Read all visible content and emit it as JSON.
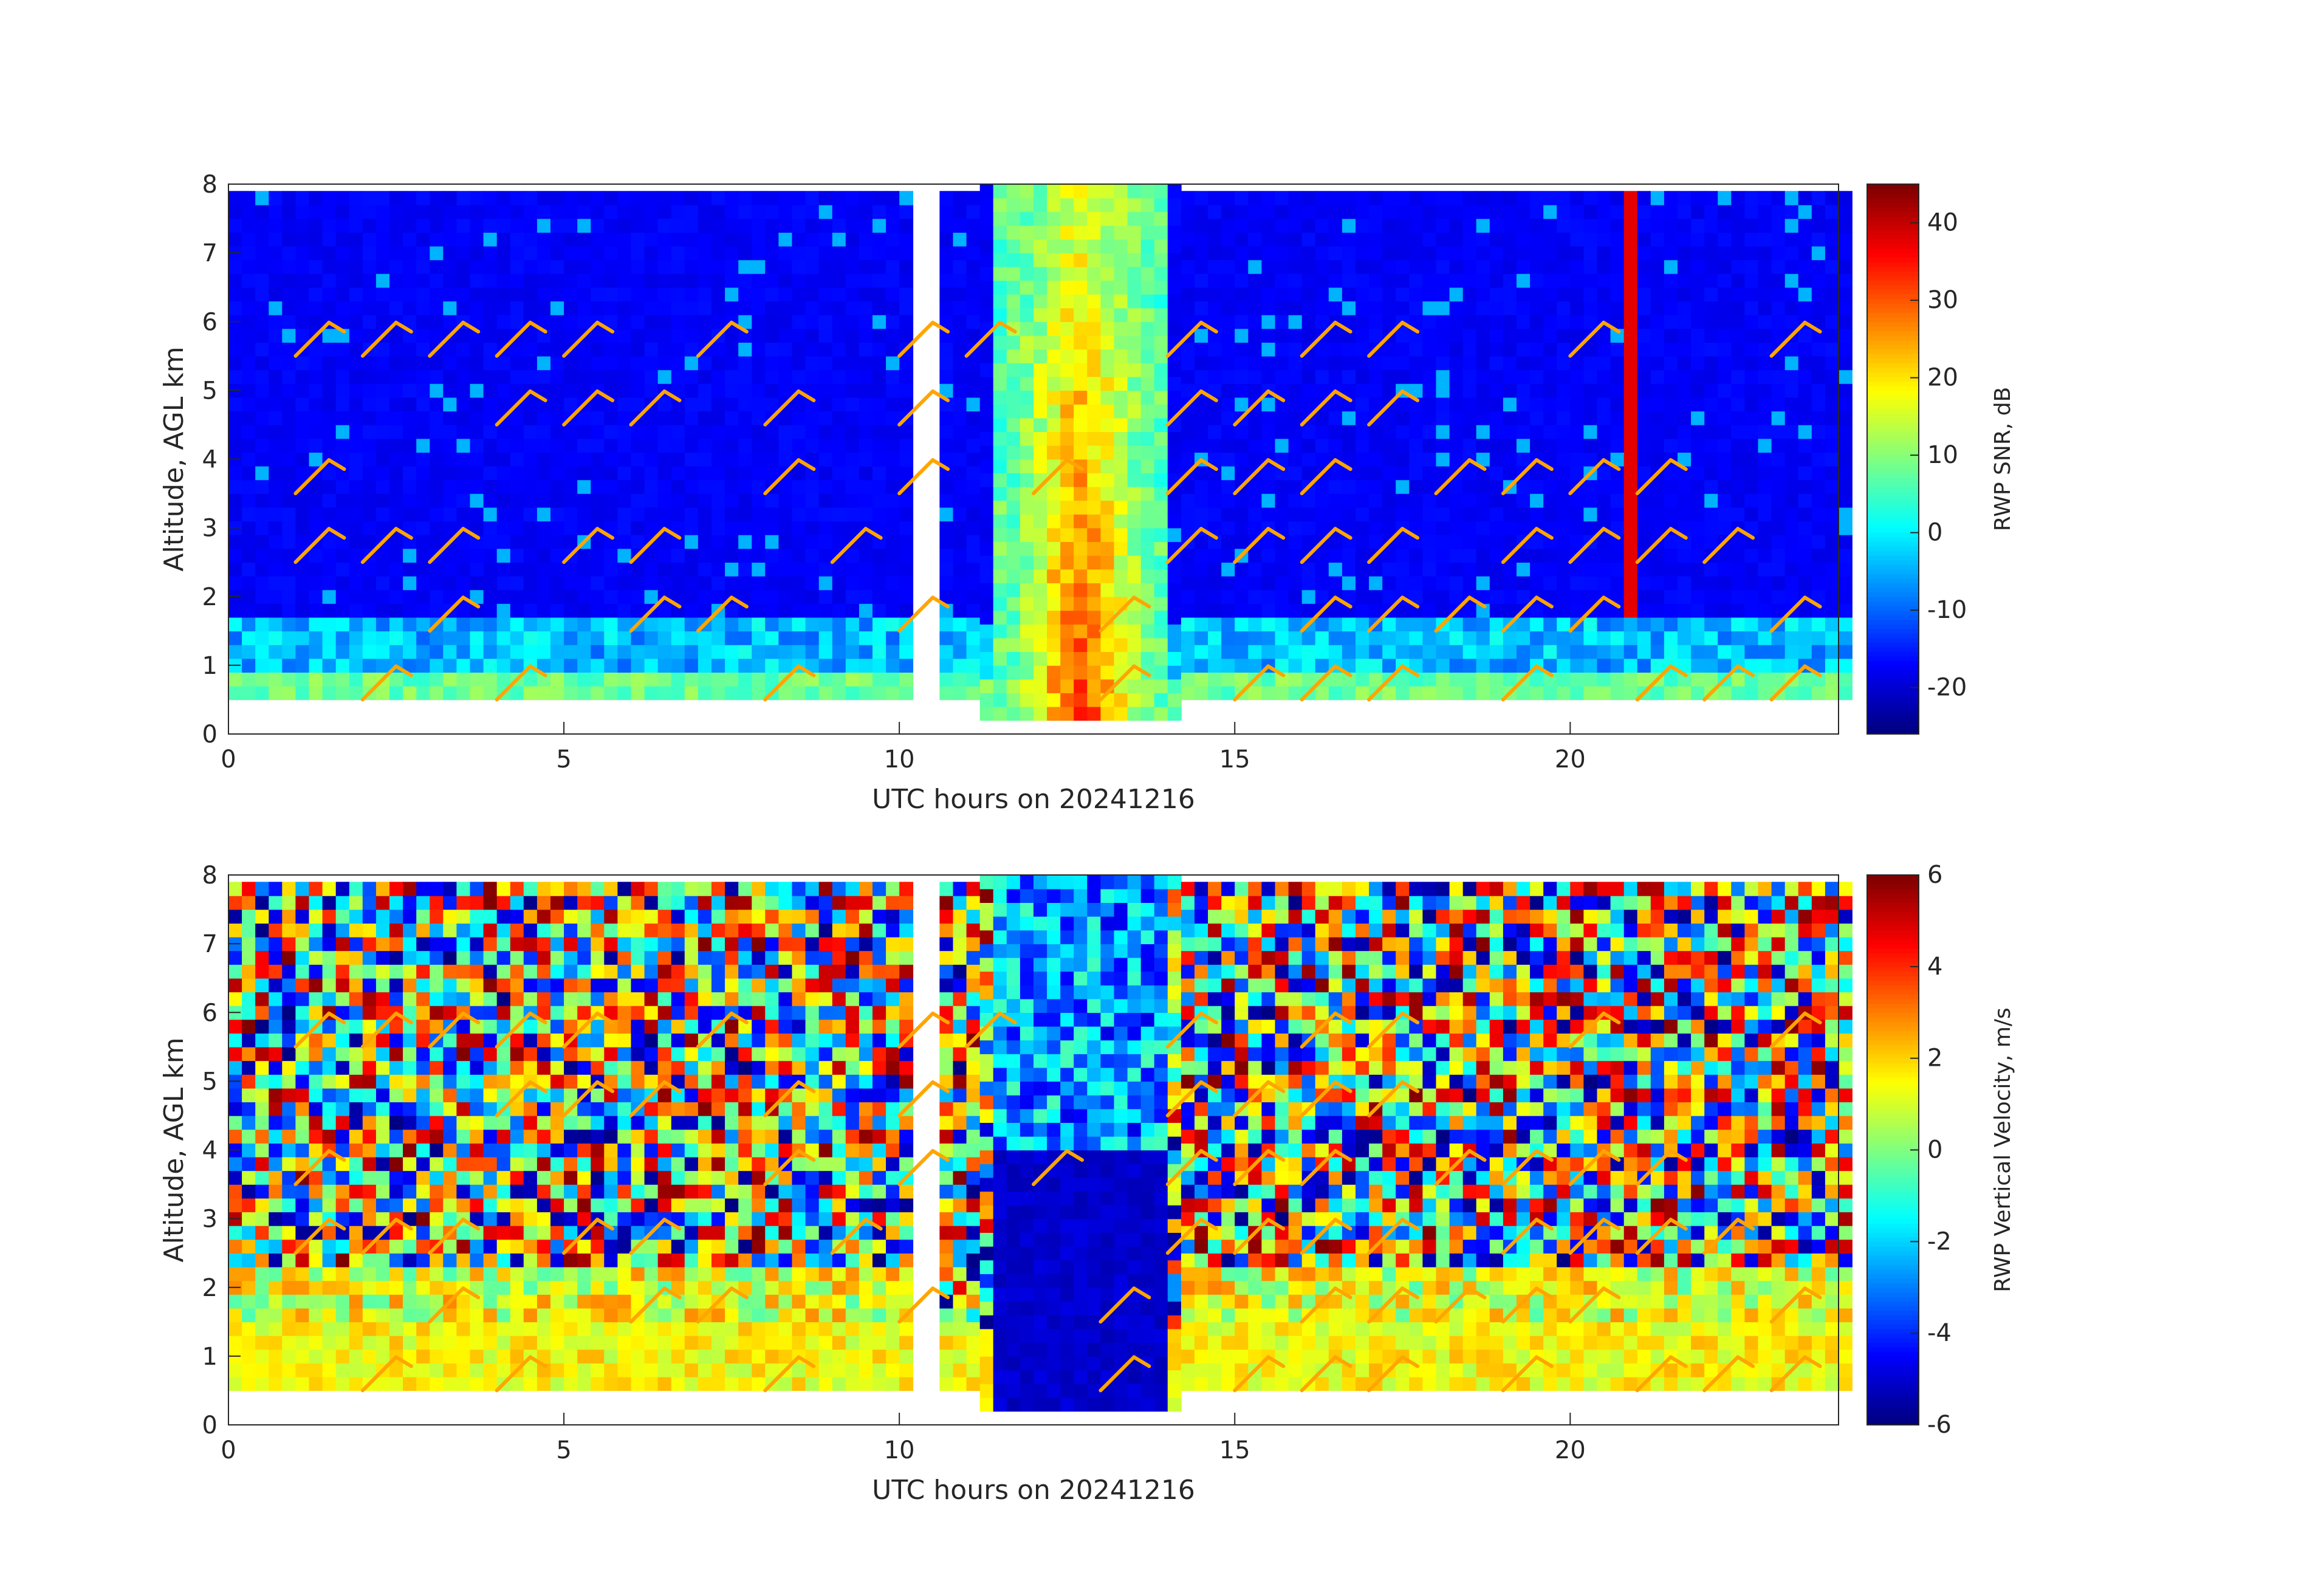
{
  "chart_data": [
    {
      "type": "heatmap",
      "title": "",
      "xlabel": "UTC hours on 20241216",
      "ylabel": "Altitude, AGL km",
      "xlim": [
        0,
        24
      ],
      "ylim": [
        0,
        8
      ],
      "x_ticks": [
        0,
        5,
        10,
        15,
        20
      ],
      "y_ticks": [
        0,
        1,
        2,
        3,
        4,
        5,
        6,
        7,
        8
      ],
      "colorbar": {
        "label": "RWP SNR, dB",
        "clim": [
          -26,
          45
        ],
        "ticks": [
          -20,
          -10,
          0,
          10,
          20,
          30,
          40
        ],
        "colormap": "jet"
      },
      "data_gap_hours": [
        [
          10.0,
          10.45
        ]
      ],
      "field": "snr",
      "wind_barbs": true,
      "barb_color": "#ffa500"
    },
    {
      "type": "heatmap",
      "title": "",
      "xlabel": "UTC hours on 20241216",
      "ylabel": "Altitude, AGL km",
      "xlim": [
        0,
        24
      ],
      "ylim": [
        0,
        8
      ],
      "x_ticks": [
        0,
        5,
        10,
        15,
        20
      ],
      "y_ticks": [
        0,
        1,
        2,
        3,
        4,
        5,
        6,
        7,
        8
      ],
      "colorbar": {
        "label": "RWP Vertical Velocity, m/s",
        "clim": [
          -6,
          6
        ],
        "ticks": [
          -6,
          -4,
          -2,
          0,
          2,
          4,
          6
        ],
        "colormap": "jet"
      },
      "data_gap_hours": [
        [
          10.0,
          10.45
        ]
      ],
      "field": "vvel",
      "wind_barbs": true,
      "barb_color": "#ffa500"
    }
  ]
}
